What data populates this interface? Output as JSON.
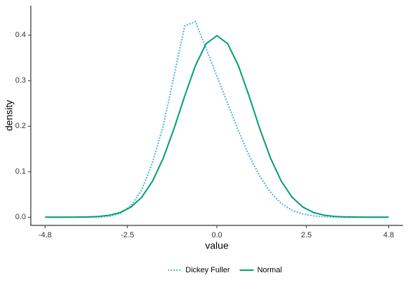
{
  "chart_data": {
    "type": "line",
    "x_label": "value",
    "y_label": "density",
    "x": [
      -4.8,
      -4.5,
      -4.2,
      -3.9,
      -3.6,
      -3.3,
      -3.0,
      -2.7,
      -2.4,
      -2.1,
      -1.8,
      -1.5,
      -1.2,
      -0.9,
      -0.6,
      -0.3,
      0,
      0.3,
      0.6,
      0.9,
      1.2,
      1.5,
      1.8,
      2.1,
      2.4,
      2.7,
      3.0,
      3.3,
      3.6,
      3.9,
      4.2,
      4.5,
      4.8
    ],
    "series": [
      {
        "name": "Dickey Fuller",
        "color": "#56B4E9",
        "dash": "dotted",
        "values": [
          0,
          0,
          0,
          0,
          0,
          0,
          0.002,
          0.008,
          0.025,
          0.06,
          0.12,
          0.2,
          0.31,
          0.42,
          0.43,
          0.37,
          0.31,
          0.25,
          0.19,
          0.135,
          0.09,
          0.055,
          0.03,
          0.015,
          0.007,
          0.003,
          0.001,
          0,
          0,
          0,
          0,
          0,
          0
        ]
      },
      {
        "name": "Normal",
        "color": "#009E73",
        "dash": "solid",
        "values": [
          0,
          0,
          0,
          0.0002,
          0.0006,
          0.0017,
          0.0044,
          0.0104,
          0.0224,
          0.044,
          0.079,
          0.1295,
          0.1942,
          0.2661,
          0.3332,
          0.3814,
          0.3989,
          0.3814,
          0.3332,
          0.2661,
          0.1942,
          0.1295,
          0.079,
          0.044,
          0.0224,
          0.0104,
          0.0044,
          0.0017,
          0.0006,
          0.0002,
          0,
          0,
          0
        ]
      }
    ],
    "xlim": [
      -5.2,
      5.2
    ],
    "xticks": [
      -4.8,
      -2.5,
      {
        "value": 0,
        "label": "0.0"
      },
      2.5,
      4.8
    ],
    "ylim": [
      -0.018,
      0.465
    ],
    "yticks": [
      {
        "value": 0,
        "label": "0.0"
      },
      0.1,
      0.2,
      0.3,
      0.4
    ],
    "grid": false,
    "legend": "bottom"
  }
}
